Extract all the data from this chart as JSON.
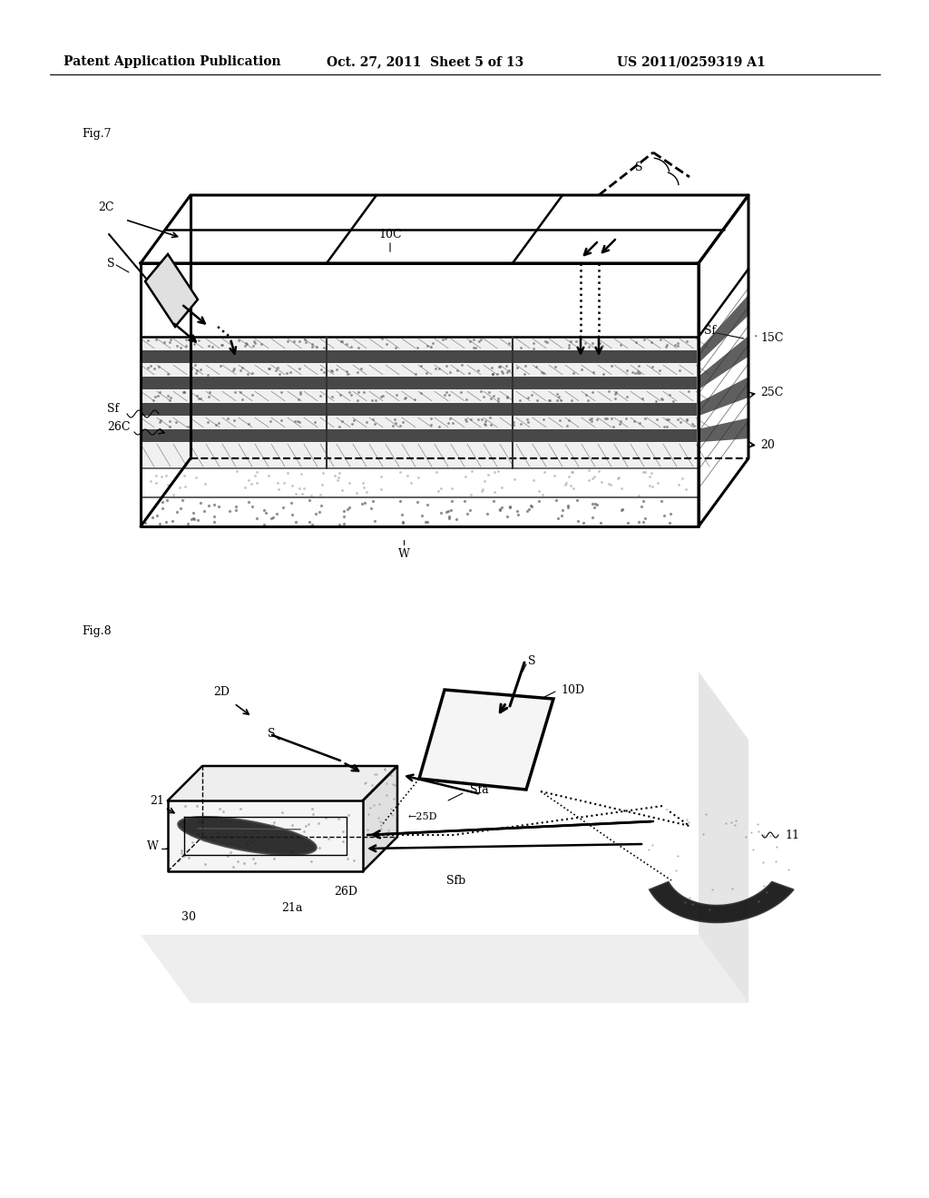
{
  "bg_color": "#ffffff",
  "header_text": "Patent Application Publication",
  "header_date": "Oct. 27, 2011  Sheet 5 of 13",
  "header_patent": "US 2011/0259319 A1",
  "fig7_label": "Fig.7",
  "fig8_label": "Fig.8"
}
